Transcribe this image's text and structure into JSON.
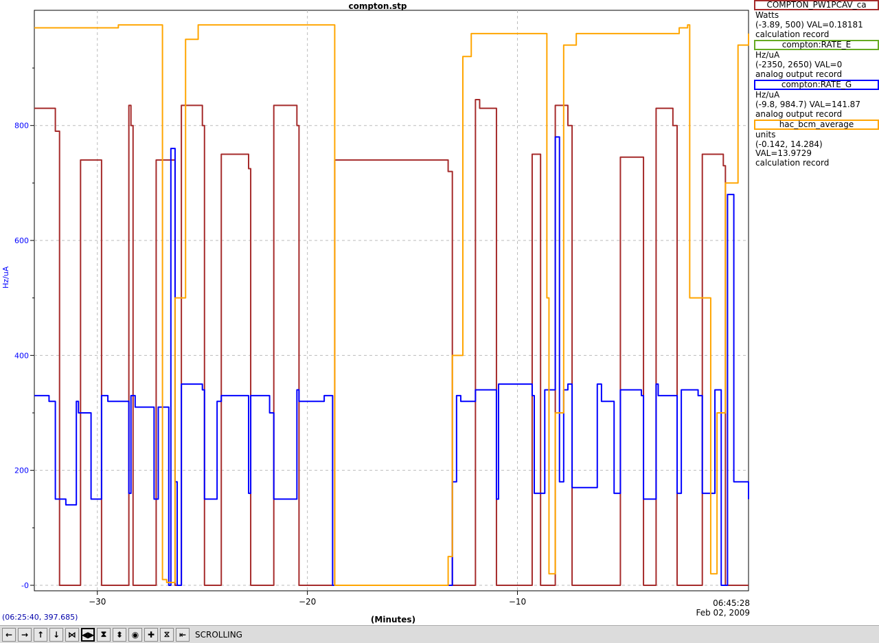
{
  "chart_data": {
    "type": "line",
    "title": "compton.stp",
    "xlabel": "(Minutes)",
    "ylabel": "Hz/uA",
    "xlim": [
      -33,
      1
    ],
    "ylim": [
      -10,
      1000
    ],
    "xticks": [
      -30,
      -20,
      -10
    ],
    "yticks": [
      0,
      200,
      400,
      600,
      800
    ],
    "ytick_labels": [
      "-0",
      "200",
      "400",
      "600",
      "800"
    ],
    "grid": true,
    "end_time": "06:45:28",
    "end_date": "Feb 02, 2009",
    "series": [
      {
        "name": "COMPTON_PW1PCAV_ca",
        "color": "#a52a2a",
        "x": [
          -33,
          -32.1,
          -32.0,
          -31.8,
          -31.0,
          -30.8,
          -30.4,
          -29.8,
          -29.6,
          -28.5,
          -28.4,
          -28.3,
          -27.3,
          -27.2,
          -27.0,
          -26.3,
          -26.2,
          -26.0,
          -25.0,
          -24.9,
          -24.2,
          -24.1,
          -22.8,
          -22.7,
          -21.8,
          -21.6,
          -20.5,
          -20.4,
          -18.8,
          -18.7,
          -13.3,
          -13.1,
          -12.1,
          -12.0,
          -11.8,
          -11.0,
          -10.8,
          -9.3,
          -9.2,
          -8.9,
          -8.4,
          -8.2,
          -7.6,
          -7.4,
          -5.3,
          -5.1,
          -4.1,
          -4.0,
          -3.6,
          -3.4,
          -2.6,
          -2.4,
          -1.5,
          -1.2,
          -0.2,
          -0.1,
          0.2,
          0.4,
          1.0
        ],
        "y": [
          830,
          830,
          790,
          0,
          0,
          740,
          740,
          0,
          0,
          835,
          800,
          0,
          0,
          740,
          740,
          0,
          0,
          835,
          800,
          0,
          0,
          750,
          725,
          0,
          0,
          835,
          800,
          0,
          0,
          740,
          720,
          0,
          0,
          845,
          830,
          0,
          0,
          750,
          750,
          0,
          0,
          835,
          800,
          0,
          0,
          745,
          745,
          0,
          0,
          830,
          800,
          0,
          0,
          750,
          730,
          0,
          0,
          0,
          0
        ]
      },
      {
        "name": "compton:RATE_E",
        "color": "#66aa22",
        "x": [],
        "y": []
      },
      {
        "name": "compton:RATE_G",
        "color": "#0000ff",
        "x": [
          -33,
          -32.3,
          -32.0,
          -31.5,
          -31.0,
          -30.9,
          -30.3,
          -29.8,
          -29.5,
          -28.5,
          -28.4,
          -28.2,
          -27.3,
          -27.1,
          -26.6,
          -26.5,
          -26.3,
          -26.2,
          -26.0,
          -25.0,
          -24.9,
          -24.3,
          -24.1,
          -22.8,
          -22.7,
          -21.8,
          -21.6,
          -20.5,
          -20.4,
          -19.2,
          -18.8,
          -18.7,
          -13.2,
          -13.1,
          -12.9,
          -12.7,
          -12.0,
          -11.0,
          -10.9,
          -9.3,
          -9.2,
          -8.7,
          -8.2,
          -8.0,
          -7.8,
          -7.6,
          -7.4,
          -6.2,
          -6.0,
          -5.4,
          -5.1,
          -4.1,
          -4.0,
          -3.4,
          -3.3,
          -2.4,
          -2.2,
          -1.4,
          -1.2,
          -0.6,
          -0.3,
          0.0,
          0.3,
          1.0
        ],
        "y": [
          330,
          320,
          150,
          140,
          320,
          300,
          150,
          330,
          320,
          160,
          330,
          310,
          150,
          310,
          0,
          760,
          180,
          0,
          350,
          340,
          150,
          320,
          330,
          160,
          330,
          300,
          150,
          340,
          320,
          330,
          0,
          0,
          0,
          180,
          330,
          320,
          340,
          150,
          350,
          330,
          160,
          340,
          780,
          180,
          340,
          350,
          170,
          350,
          320,
          160,
          340,
          330,
          150,
          350,
          330,
          160,
          340,
          330,
          160,
          340,
          0,
          680,
          180,
          150
        ]
      },
      {
        "name": "hac_bcm_average",
        "color": "#ffa500",
        "x": [
          -33,
          -29.0,
          -27.0,
          -26.9,
          -26.7,
          -26.3,
          -25.8,
          -25.2,
          -21.0,
          -18.8,
          -18.7,
          -13.5,
          -13.3,
          -13.1,
          -12.6,
          -12.2,
          -8.7,
          -8.6,
          -8.5,
          -8.2,
          -7.8,
          -7.2,
          -2.3,
          -1.9,
          -1.8,
          -0.8,
          -0.5,
          -0.1,
          0.5,
          1.0
        ],
        "y": [
          970,
          975,
          975,
          10,
          5,
          500,
          950,
          975,
          975,
          975,
          0,
          0,
          50,
          400,
          920,
          960,
          960,
          500,
          20,
          300,
          940,
          960,
          970,
          975,
          500,
          20,
          300,
          700,
          940,
          960
        ]
      }
    ]
  },
  "legend": [
    {
      "name": "COMPTON_PW1PCAV_ca",
      "units": "Watts",
      "range": "(-3.89, 500) VAL=0.18181",
      "record": "calculation record",
      "color": "#a52a2a"
    },
    {
      "name": "compton:RATE_E",
      "units": "Hz/uA",
      "range": "(-2350, 2650) VAL=0",
      "record": "analog output record",
      "color": "#66aa22"
    },
    {
      "name": "compton:RATE_G",
      "units": "Hz/uA",
      "range": "(-9.8, 984.7) VAL=141.87",
      "record": "analog output record",
      "color": "#0000ff"
    },
    {
      "name": "hac_bcm_average",
      "units": "units",
      "range": "(-0.142, 14.284) VAL=13.9729",
      "record": "calculation record",
      "color": "#ffa500"
    }
  ],
  "status": {
    "cursor": "(06:25:40, 397.685)",
    "mode": "SCROLLING"
  },
  "toolbar": [
    {
      "icon": "arrow-left-icon",
      "glyph": "←"
    },
    {
      "icon": "arrow-right-icon",
      "glyph": "→"
    },
    {
      "icon": "arrow-up-icon",
      "glyph": "↑"
    },
    {
      "icon": "arrow-down-icon",
      "glyph": "↓"
    },
    {
      "icon": "zoom-x-in-icon",
      "glyph": "⋈"
    },
    {
      "icon": "zoom-x-out-icon",
      "glyph": "◀▶"
    },
    {
      "icon": "zoom-y-in-icon",
      "glyph": "⧗"
    },
    {
      "icon": "zoom-y-out-icon",
      "glyph": "⬍"
    },
    {
      "icon": "record-icon",
      "glyph": "◉"
    },
    {
      "icon": "crosshair-icon",
      "glyph": "✚"
    },
    {
      "icon": "auto-scale-icon",
      "glyph": "⧖"
    },
    {
      "icon": "scroll-back-icon",
      "glyph": "⇤"
    }
  ]
}
